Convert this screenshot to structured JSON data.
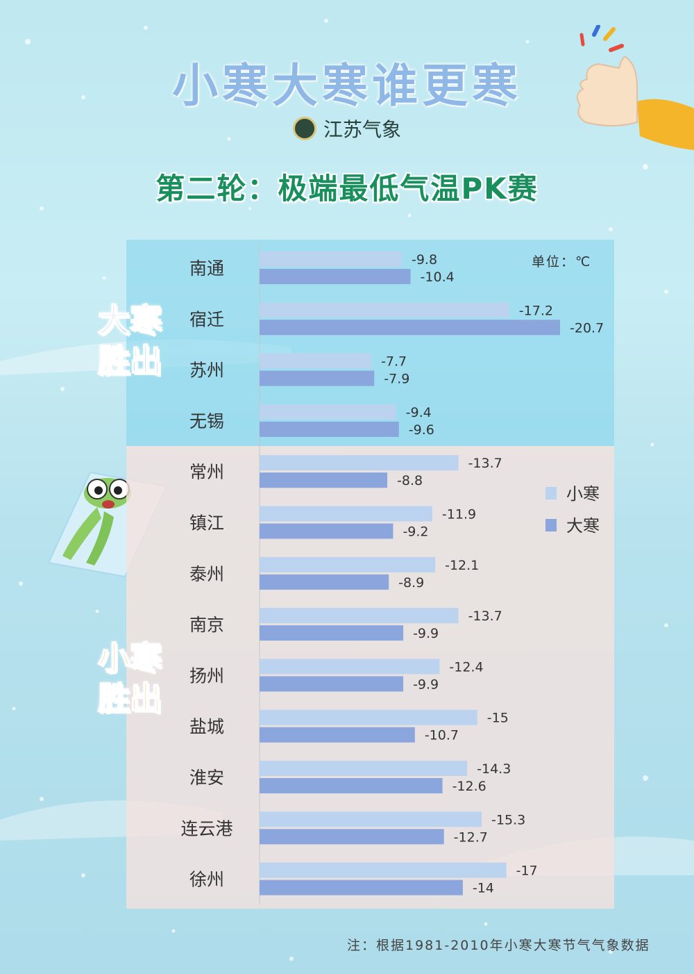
{
  "header": {
    "title": "小寒大寒谁更寒",
    "brand": "江苏气象",
    "subtitle": "第二轮：极端最低气温PK赛"
  },
  "labels": {
    "dahan_wins": [
      "大寒",
      "胜出"
    ],
    "xiaohan_wins": [
      "小寒",
      "胜出"
    ]
  },
  "note": "注：根据1981-2010年小寒大寒节气气象数据",
  "colors": {
    "xiaohan": "#bcd3f0",
    "dahan": "#8aa6dc",
    "dahan_band": "#80d4ec",
    "xiaohan_band": "#f6e2de",
    "title": "#8fb8e6",
    "subtitle": "#1a8f5e"
  },
  "chart_data": {
    "type": "bar",
    "orientation": "horizontal",
    "unit_label": "单位：℃",
    "categories": [
      "南通",
      "宿迁",
      "苏州",
      "无锡",
      "常州",
      "镇江",
      "泰州",
      "南京",
      "扬州",
      "盐城",
      "淮安",
      "连云港",
      "徐州"
    ],
    "series": [
      {
        "name": "小寒",
        "values": [
          -9.8,
          -17.2,
          -7.7,
          -9.4,
          -13.7,
          -11.9,
          -12.1,
          -13.7,
          -12.4,
          -15,
          -14.3,
          -15.3,
          -17
        ]
      },
      {
        "name": "大寒",
        "values": [
          -10.4,
          -20.7,
          -7.9,
          -9.6,
          -8.8,
          -9.2,
          -8.9,
          -9.9,
          -9.9,
          -10.7,
          -12.6,
          -12.7,
          -14
        ]
      }
    ],
    "legend_position": "right",
    "axis_range": [
      0,
      -20.7
    ],
    "grid": false
  }
}
